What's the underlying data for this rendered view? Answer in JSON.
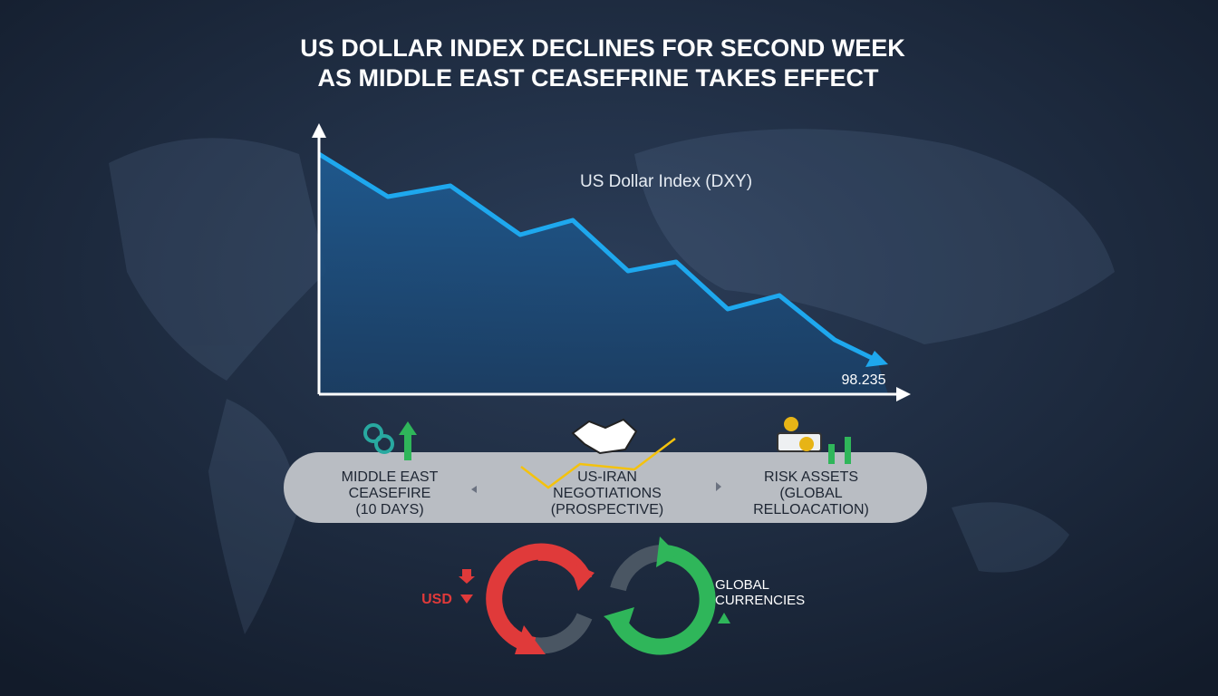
{
  "header": {
    "title_lines": [
      "US DOLLAR INDEX DECLINES FOR SECOND WEEK",
      "AS MIDDLE EAST CEASEFRINE TAKES EFFECT"
    ]
  },
  "chart": {
    "label": "US Dollar Index (DXY)",
    "last_value": "98.235"
  },
  "factors": [
    {
      "lines": [
        "MIDDLE EAST",
        "CEASEFIRE",
        "(10 DAYS)"
      ]
    },
    {
      "lines": [
        "US-IRAN",
        "NEGOTIATIONS",
        "(PROSPECTIVE)"
      ]
    },
    {
      "lines": [
        "RISK ASSETS",
        "(GLOBAL",
        "RELLOACATION)"
      ]
    }
  ],
  "currencies": {
    "usd": "USD",
    "global_lines": [
      "GLOBAL",
      "CURRENCIES"
    ]
  }
}
